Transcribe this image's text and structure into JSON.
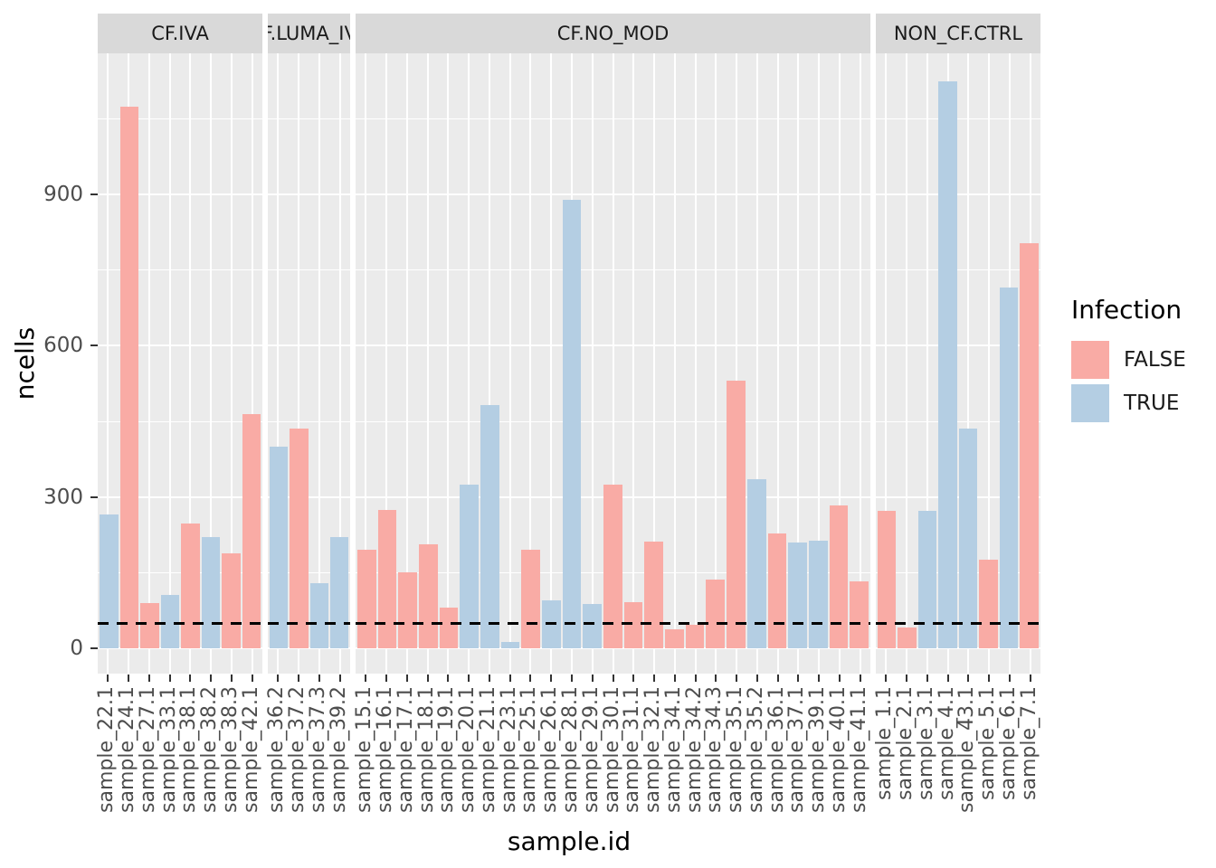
{
  "colors": {
    "false_fill": "#F9ABA5",
    "true_fill": "#B4CEE3",
    "panel_bg": "#EBEBEB",
    "strip_bg": "#D9D9D9",
    "gridline": "#FFFFFF",
    "axis_text": "#4D4D4D",
    "strip_text": "#1A1A1A",
    "hline": "#000000"
  },
  "axes": {
    "y_title": "ncells",
    "x_title": "sample.id",
    "y_tick_labels": [
      "0",
      "300",
      "600",
      "900"
    ]
  },
  "legend": {
    "title": "Infection",
    "entries": [
      {
        "label": "FALSE",
        "color": "#F9ABA5"
      },
      {
        "label": "TRUE",
        "color": "#B4CEE3"
      }
    ]
  },
  "chart_data": {
    "type": "bar",
    "title": "",
    "xlabel": "sample.id",
    "ylabel": "ncells",
    "ylim": [
      0,
      1180
    ],
    "y_major_ticks": [
      0,
      300,
      600,
      900
    ],
    "y_minor_ticks": [
      150,
      450,
      750,
      1050
    ],
    "grid": true,
    "legend_title": "Infection",
    "legend_position": "right",
    "hline_dashed_y": 50,
    "facets": [
      {
        "label": "CF.IVA",
        "bars": [
          {
            "x": "sample_22.1",
            "infection": "TRUE",
            "ncells": 265
          },
          {
            "x": "sample_24.1",
            "infection": "FALSE",
            "ncells": 1075
          },
          {
            "x": "sample_27.1",
            "infection": "FALSE",
            "ncells": 90
          },
          {
            "x": "sample_33.1",
            "infection": "TRUE",
            "ncells": 105
          },
          {
            "x": "sample_38.1",
            "infection": "FALSE",
            "ncells": 248
          },
          {
            "x": "sample_38.2",
            "infection": "TRUE",
            "ncells": 220
          },
          {
            "x": "sample_38.3",
            "infection": "FALSE",
            "ncells": 188
          },
          {
            "x": "sample_42.1",
            "infection": "FALSE",
            "ncells": 465
          }
        ]
      },
      {
        "label": "CF.LUMA_IVA",
        "bars": [
          {
            "x": "sample_36.2",
            "infection": "TRUE",
            "ncells": 400
          },
          {
            "x": "sample_37.2",
            "infection": "FALSE",
            "ncells": 435
          },
          {
            "x": "sample_37.3",
            "infection": "TRUE",
            "ncells": 130
          },
          {
            "x": "sample_39.2",
            "infection": "TRUE",
            "ncells": 220
          }
        ]
      },
      {
        "label": "CF.NO_MOD",
        "bars": [
          {
            "x": "sample_15.1",
            "infection": "FALSE",
            "ncells": 195
          },
          {
            "x": "sample_16.1",
            "infection": "FALSE",
            "ncells": 275
          },
          {
            "x": "sample_17.1",
            "infection": "FALSE",
            "ncells": 150
          },
          {
            "x": "sample_18.1",
            "infection": "FALSE",
            "ncells": 207
          },
          {
            "x": "sample_19.1",
            "infection": "FALSE",
            "ncells": 80
          },
          {
            "x": "sample_20.1",
            "infection": "TRUE",
            "ncells": 325
          },
          {
            "x": "sample_21.1",
            "infection": "TRUE",
            "ncells": 483
          },
          {
            "x": "sample_23.1",
            "infection": "TRUE",
            "ncells": 12
          },
          {
            "x": "sample_25.1",
            "infection": "FALSE",
            "ncells": 195
          },
          {
            "x": "sample_26.1",
            "infection": "TRUE",
            "ncells": 95
          },
          {
            "x": "sample_28.1",
            "infection": "TRUE",
            "ncells": 890
          },
          {
            "x": "sample_29.1",
            "infection": "TRUE",
            "ncells": 88
          },
          {
            "x": "sample_30.1",
            "infection": "FALSE",
            "ncells": 325
          },
          {
            "x": "sample_31.1",
            "infection": "FALSE",
            "ncells": 92
          },
          {
            "x": "sample_32.1",
            "infection": "FALSE",
            "ncells": 212
          },
          {
            "x": "sample_34.1",
            "infection": "FALSE",
            "ncells": 38
          },
          {
            "x": "sample_34.2",
            "infection": "FALSE",
            "ncells": 47
          },
          {
            "x": "sample_34.3",
            "infection": "FALSE",
            "ncells": 137
          },
          {
            "x": "sample_35.1",
            "infection": "FALSE",
            "ncells": 530
          },
          {
            "x": "sample_35.2",
            "infection": "TRUE",
            "ncells": 335
          },
          {
            "x": "sample_36.1",
            "infection": "FALSE",
            "ncells": 228
          },
          {
            "x": "sample_37.1",
            "infection": "TRUE",
            "ncells": 210
          },
          {
            "x": "sample_39.1",
            "infection": "TRUE",
            "ncells": 213
          },
          {
            "x": "sample_40.1",
            "infection": "FALSE",
            "ncells": 283
          },
          {
            "x": "sample_41.1",
            "infection": "FALSE",
            "ncells": 133
          }
        ]
      },
      {
        "label": "NON_CF.CTRL",
        "bars": [
          {
            "x": "sample_1.1",
            "infection": "FALSE",
            "ncells": 273
          },
          {
            "x": "sample_2.1",
            "infection": "FALSE",
            "ncells": 42
          },
          {
            "x": "sample_3.1",
            "infection": "TRUE",
            "ncells": 273
          },
          {
            "x": "sample_4.1",
            "infection": "TRUE",
            "ncells": 1125
          },
          {
            "x": "sample_43.1",
            "infection": "TRUE",
            "ncells": 435
          },
          {
            "x": "sample_5.1",
            "infection": "FALSE",
            "ncells": 175
          },
          {
            "x": "sample_6.1",
            "infection": "TRUE",
            "ncells": 715
          },
          {
            "x": "sample_7.1",
            "infection": "FALSE",
            "ncells": 803
          }
        ]
      }
    ]
  }
}
